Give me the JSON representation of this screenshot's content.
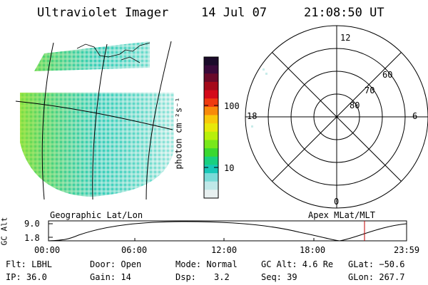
{
  "header": {
    "title": "Ultraviolet Imager",
    "date": "14 Jul 07",
    "time": "21:08:50 UT"
  },
  "colorbar": {
    "unit_label": "photon cm⁻²s⁻¹",
    "ticks": [
      "100",
      "10"
    ],
    "colors": [
      "#1b0b2a",
      "#3a0a3a",
      "#6a0a2a",
      "#a50a1a",
      "#d40a1a",
      "#ef3a10",
      "#f88a0a",
      "#f8c80a",
      "#e8e80a",
      "#b8f00a",
      "#78e81a",
      "#3ad830",
      "#19d080",
      "#18c8b8",
      "#7adbd8",
      "#bfe8e8",
      "#e8f0f0"
    ]
  },
  "left_panel": {
    "label": "Geographic Lat/Lon"
  },
  "right_panel": {
    "label": "Apex MLat/MLT",
    "mlt_labels": {
      "top": "12",
      "left": "18",
      "right": "6",
      "bottom": "0"
    },
    "lat_labels": [
      "60",
      "70",
      "80"
    ]
  },
  "altitude_plot": {
    "ylabel": "GC Alt",
    "yticks": [
      "9.0",
      "1.8"
    ],
    "xticks": [
      "00:00",
      "06:00",
      "12:00",
      "18:00",
      "23:59"
    ]
  },
  "footer": {
    "filter": "Flt: LBHL",
    "ip": "IP: 36.0",
    "door": "Door: Open",
    "gain": "Gain: 14",
    "mode": "Mode: Normal",
    "dsp_label": "Dsp:",
    "dsp_value": "3.2",
    "gc_alt": "GC Alt: 4.6 Re",
    "seq": "Seq: 39",
    "glat": "GLat: −50.6",
    "glon": "GLon: 267.7"
  }
}
